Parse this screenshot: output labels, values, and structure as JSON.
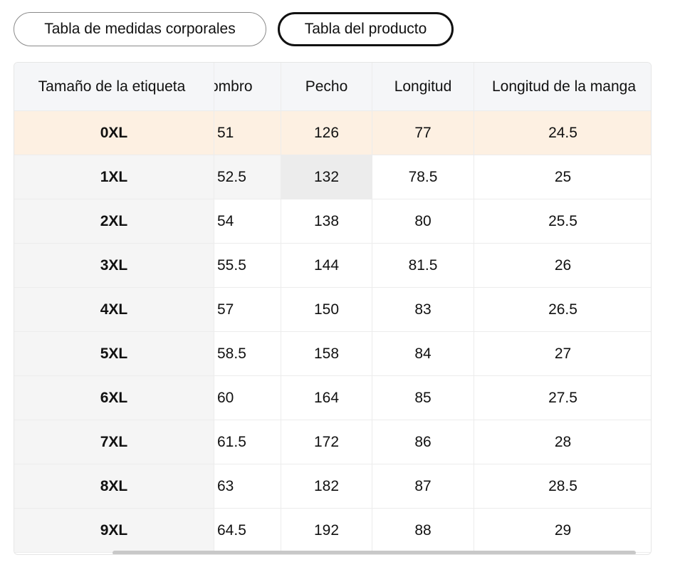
{
  "tabs": {
    "body_measurements": "Tabla de medidas corporales",
    "product": "Tabla del producto"
  },
  "table": {
    "headers": [
      "Tamaño de la etiqueta",
      "ombro",
      "Pecho",
      "Longitud",
      "Longitud de la manga"
    ],
    "rows": [
      [
        "0XL",
        "51",
        "126",
        "77",
        "24.5"
      ],
      [
        "1XL",
        "52.5",
        "132",
        "78.5",
        "25"
      ],
      [
        "2XL",
        "54",
        "138",
        "80",
        "25.5"
      ],
      [
        "3XL",
        "55.5",
        "144",
        "81.5",
        "26"
      ],
      [
        "4XL",
        "57",
        "150",
        "83",
        "26.5"
      ],
      [
        "5XL",
        "58.5",
        "158",
        "84",
        "27"
      ],
      [
        "6XL",
        "60",
        "164",
        "85",
        "27.5"
      ],
      [
        "7XL",
        "61.5",
        "172",
        "86",
        "28"
      ],
      [
        "8XL",
        "63",
        "182",
        "87",
        "28.5"
      ],
      [
        "9XL",
        "64.5",
        "192",
        "88",
        "29"
      ]
    ]
  },
  "colors": {
    "highlight_row": "#fdf0e2",
    "header_bg": "#f5f6f8",
    "sticky_col_bg": "#f5f5f5"
  }
}
